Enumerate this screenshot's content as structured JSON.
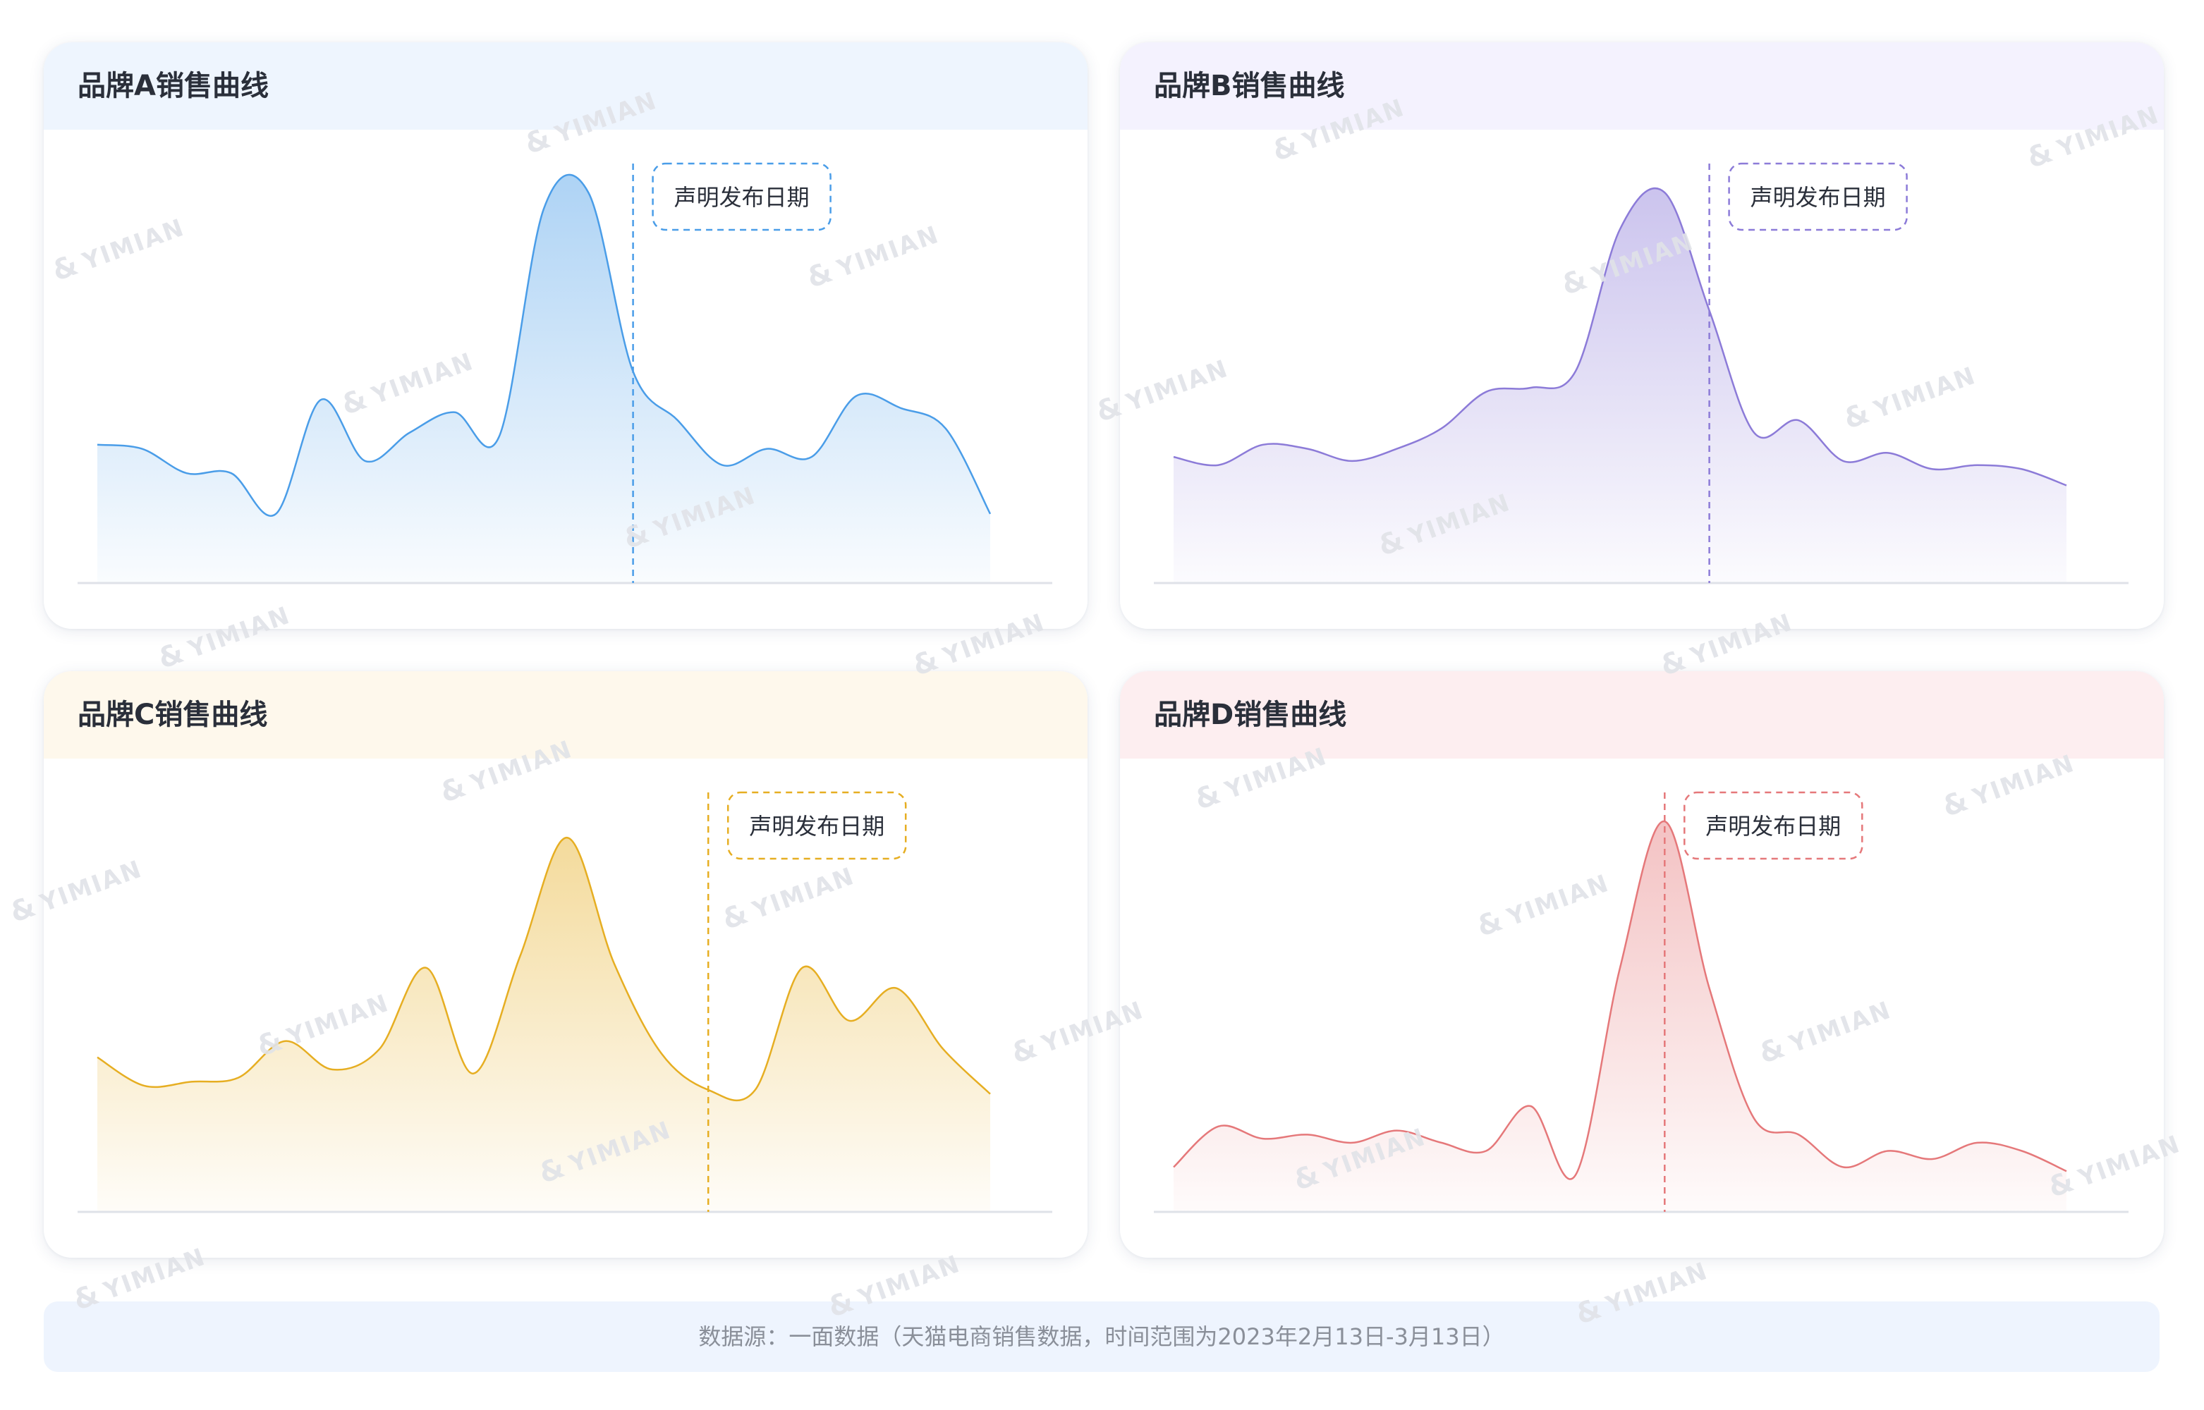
{
  "chart_data": [
    {
      "type": "area",
      "title": "品牌A销售曲线",
      "annotation": "声明发布日期",
      "marker_index": 12,
      "color": "#4a9de8",
      "header_bg": "#eef5fe",
      "ylim": [
        0,
        100
      ],
      "values": [
        34,
        33,
        27,
        27,
        17,
        45,
        30,
        37,
        42,
        36,
        92,
        96,
        52,
        40,
        29,
        33,
        31,
        46,
        43,
        38,
        17
      ]
    },
    {
      "type": "area",
      "title": "品牌B销售曲线",
      "annotation": "声明发布日期",
      "marker_index": 12,
      "color": "#8c7bd8",
      "header_bg": "#f4f2fe",
      "ylim": [
        0,
        100
      ],
      "values": [
        31,
        29,
        34,
        33,
        30,
        33,
        38,
        47,
        48,
        52,
        87,
        96,
        67,
        37,
        40,
        30,
        32,
        28,
        29,
        28,
        24
      ]
    },
    {
      "type": "area",
      "title": "品牌C销售曲线",
      "annotation": "声明发布日期",
      "marker_index": 13,
      "color": "#e6ae22",
      "header_bg": "#fef8ec",
      "ylim": [
        0,
        100
      ],
      "values": [
        38,
        31,
        32,
        33,
        42,
        35,
        40,
        60,
        34,
        63,
        92,
        61,
        39,
        30,
        30,
        60,
        47,
        55,
        40,
        29
      ]
    },
    {
      "type": "area",
      "title": "品牌D销售曲线",
      "annotation": "声明发布日期",
      "marker_index": 11,
      "color": "#e5787a",
      "header_bg": "#fdeef0",
      "ylim": [
        0,
        100
      ],
      "values": [
        11,
        21,
        18,
        19,
        17,
        20,
        17,
        15,
        26,
        9,
        60,
        96,
        55,
        23,
        19,
        11,
        15,
        13,
        17,
        15,
        10
      ]
    }
  ],
  "footer_text": "数据源：一面数据（天猫电商销售数据，时间范围为2023年2月13日-3月13日）",
  "watermark": "YIMIAN"
}
